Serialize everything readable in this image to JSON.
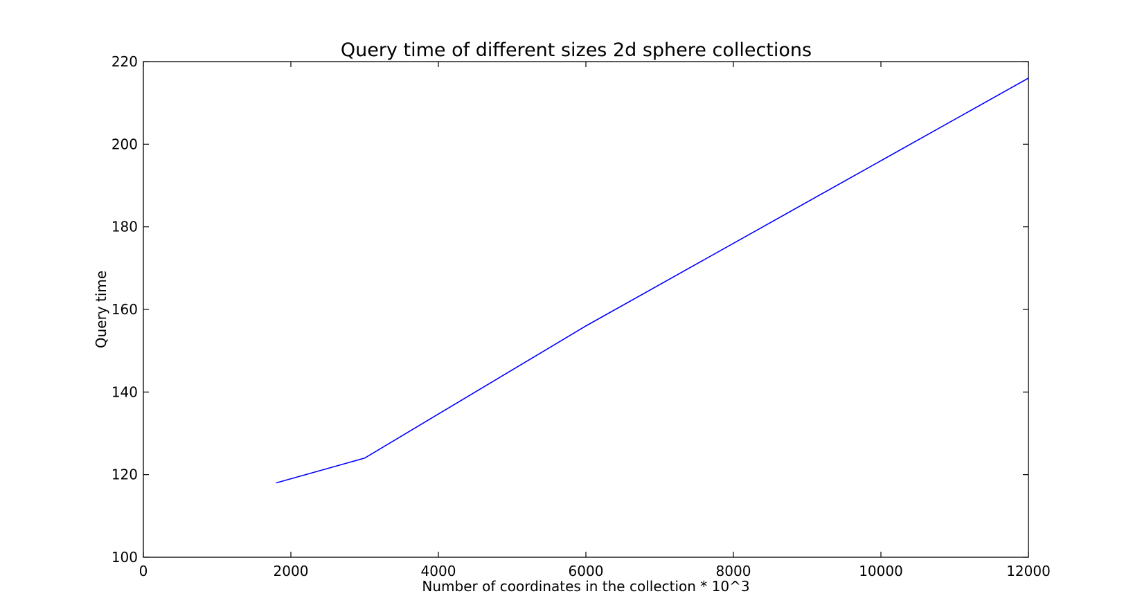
{
  "chart_data": {
    "type": "line",
    "title": "Query time of different sizes 2d sphere collections",
    "xlabel": "Number of coordinates in the collection * 10^3",
    "ylabel": "Query time",
    "xlim": [
      0,
      12000
    ],
    "ylim": [
      100,
      220
    ],
    "xticks": [
      0,
      2000,
      4000,
      6000,
      8000,
      10000,
      12000
    ],
    "yticks": [
      100,
      120,
      140,
      160,
      180,
      200,
      220
    ],
    "grid": false,
    "legend": "none",
    "series": [
      {
        "color": "#0000ff",
        "points": [
          {
            "x": 1800,
            "y": 118
          },
          {
            "x": 3000,
            "y": 124
          },
          {
            "x": 6000,
            "y": 156
          },
          {
            "x": 12000,
            "y": 216
          }
        ]
      }
    ]
  }
}
